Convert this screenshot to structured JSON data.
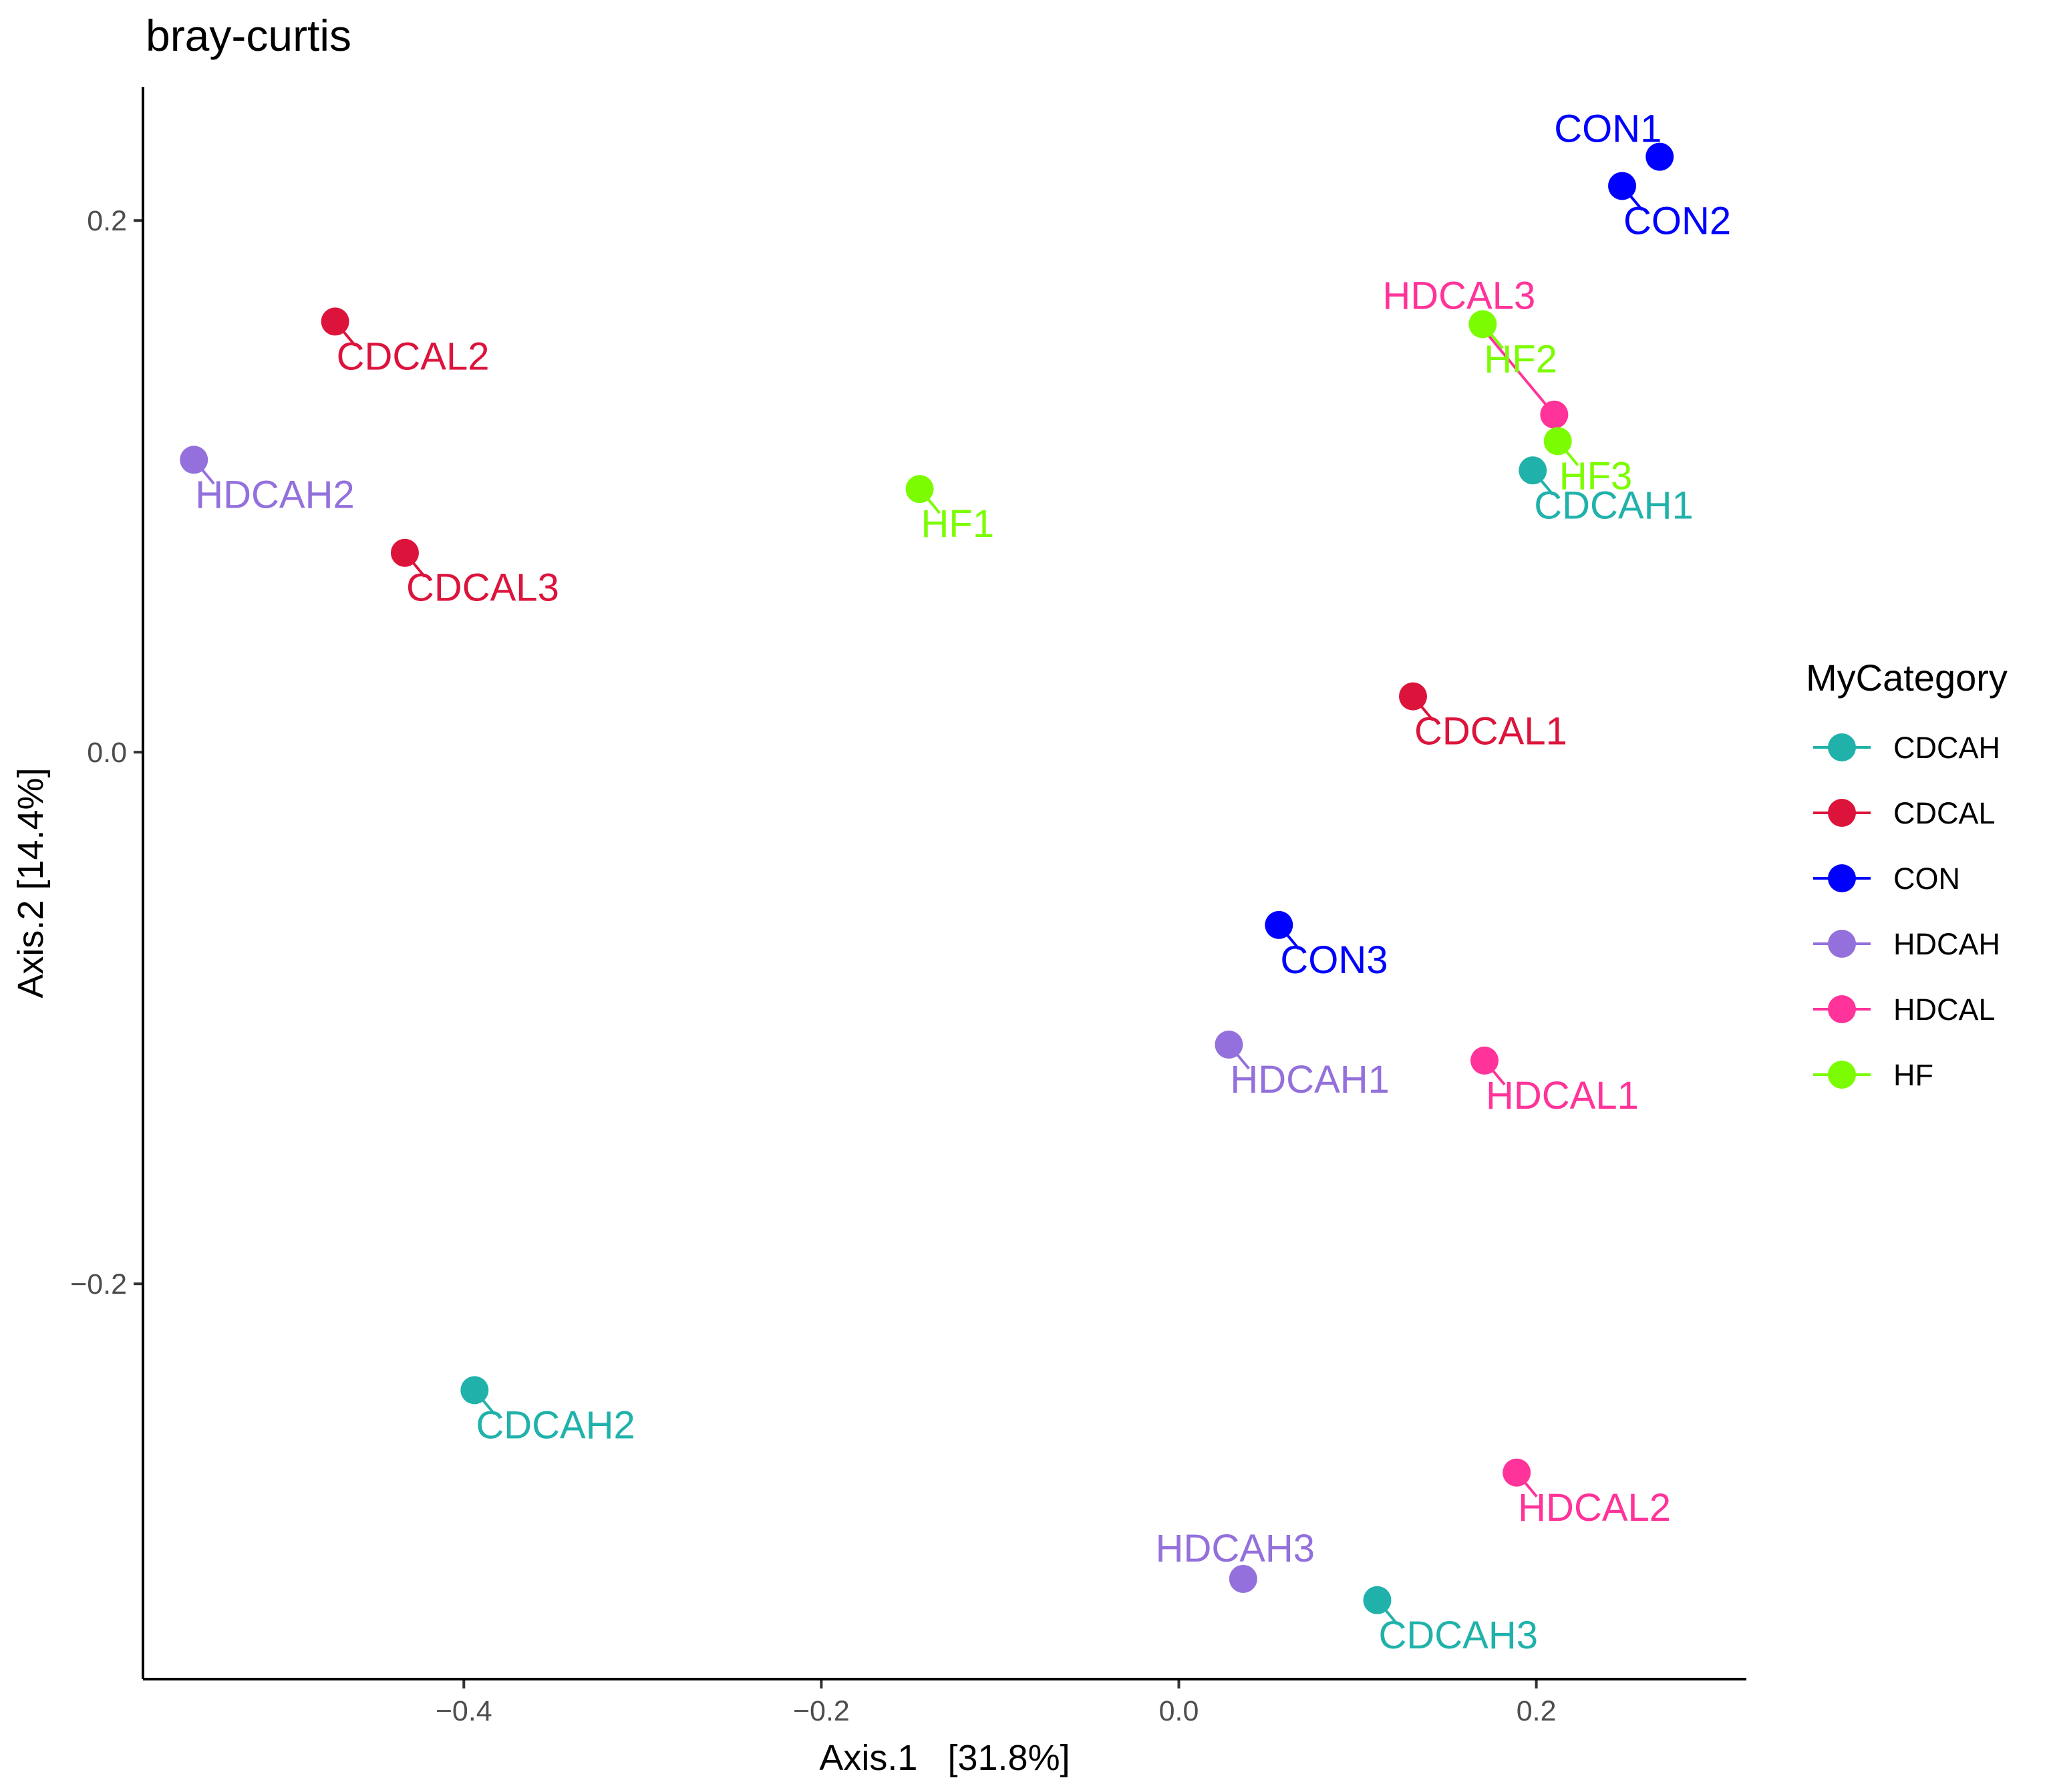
{
  "chart_data": {
    "type": "scatter",
    "title": "bray-curtis",
    "xlabel": "Axis.1   [31.8%]",
    "ylabel": "Axis.2 [14.4%]",
    "xlim": [
      -0.5795,
      0.3175
    ],
    "ylim": [
      -0.3487,
      0.2503
    ],
    "x_ticks": [
      -0.4,
      -0.2,
      0.0,
      0.2
    ],
    "x_tick_labels": [
      "−0.4",
      "−0.2",
      "0.0",
      "0.2"
    ],
    "y_ticks": [
      -0.2,
      0.0,
      0.2
    ],
    "y_tick_labels": [
      "−0.2",
      "0.0",
      "0.2"
    ],
    "grid": false,
    "legend": {
      "title": "MyCategory",
      "position": "right",
      "entries": [
        {
          "name": "CDCAH",
          "color": "#20B2AA"
        },
        {
          "name": "CDCAL",
          "color": "#DC143C"
        },
        {
          "name": "CON",
          "color": "#0000FF"
        },
        {
          "name": "HDCAH",
          "color": "#9370DB"
        },
        {
          "name": "HDCAL",
          "color": "#FF3399"
        },
        {
          "name": "HF",
          "color": "#7CFC00"
        }
      ]
    },
    "points": [
      {
        "label": "CDCAH1",
        "group": "CDCAH",
        "x": 0.198,
        "y": 0.106,
        "label_dir": "se"
      },
      {
        "label": "CDCAH2",
        "group": "CDCAH",
        "x": -0.394,
        "y": -0.24,
        "label_dir": "se"
      },
      {
        "label": "CDCAH3",
        "group": "CDCAH",
        "x": 0.111,
        "y": -0.319,
        "label_dir": "se"
      },
      {
        "label": "CDCAL1",
        "group": "CDCAL",
        "x": 0.131,
        "y": 0.021,
        "label_dir": "se"
      },
      {
        "label": "CDCAL2",
        "group": "CDCAL",
        "x": -0.472,
        "y": 0.162,
        "label_dir": "se"
      },
      {
        "label": "CDCAL3",
        "group": "CDCAL",
        "x": -0.433,
        "y": 0.075,
        "label_dir": "se"
      },
      {
        "label": "CON1",
        "group": "CON",
        "x": 0.269,
        "y": 0.224,
        "label_dir": "nw"
      },
      {
        "label": "CON2",
        "group": "CON",
        "x": 0.248,
        "y": 0.213,
        "label_dir": "se"
      },
      {
        "label": "CON3",
        "group": "CON",
        "x": 0.056,
        "y": -0.065,
        "label_dir": "se"
      },
      {
        "label": "HDCAH1",
        "group": "HDCAH",
        "x": 0.028,
        "y": -0.11,
        "label_dir": "se"
      },
      {
        "label": "HDCAH2",
        "group": "HDCAH",
        "x": -0.551,
        "y": 0.11,
        "label_dir": "se"
      },
      {
        "label": "HDCAH3",
        "group": "HDCAH",
        "x": 0.036,
        "y": -0.311,
        "label_dir": "n"
      },
      {
        "label": "HDCAL1",
        "group": "HDCAL",
        "x": 0.171,
        "y": -0.116,
        "label_dir": "se"
      },
      {
        "label": "HDCAL2",
        "group": "HDCAL",
        "x": 0.189,
        "y": -0.271,
        "label_dir": "se"
      },
      {
        "label": "HDCAL3",
        "group": "HDCAL",
        "x": 0.21,
        "y": 0.127,
        "label_dir": "far-nw"
      },
      {
        "label": "HF1",
        "group": "HF",
        "x": -0.145,
        "y": 0.099,
        "label_dir": "se"
      },
      {
        "label": "HF2",
        "group": "HF",
        "x": 0.17,
        "y": 0.161,
        "label_dir": "se"
      },
      {
        "label": "HF3",
        "group": "HF",
        "x": 0.212,
        "y": 0.117,
        "label_dir": "se"
      }
    ]
  }
}
